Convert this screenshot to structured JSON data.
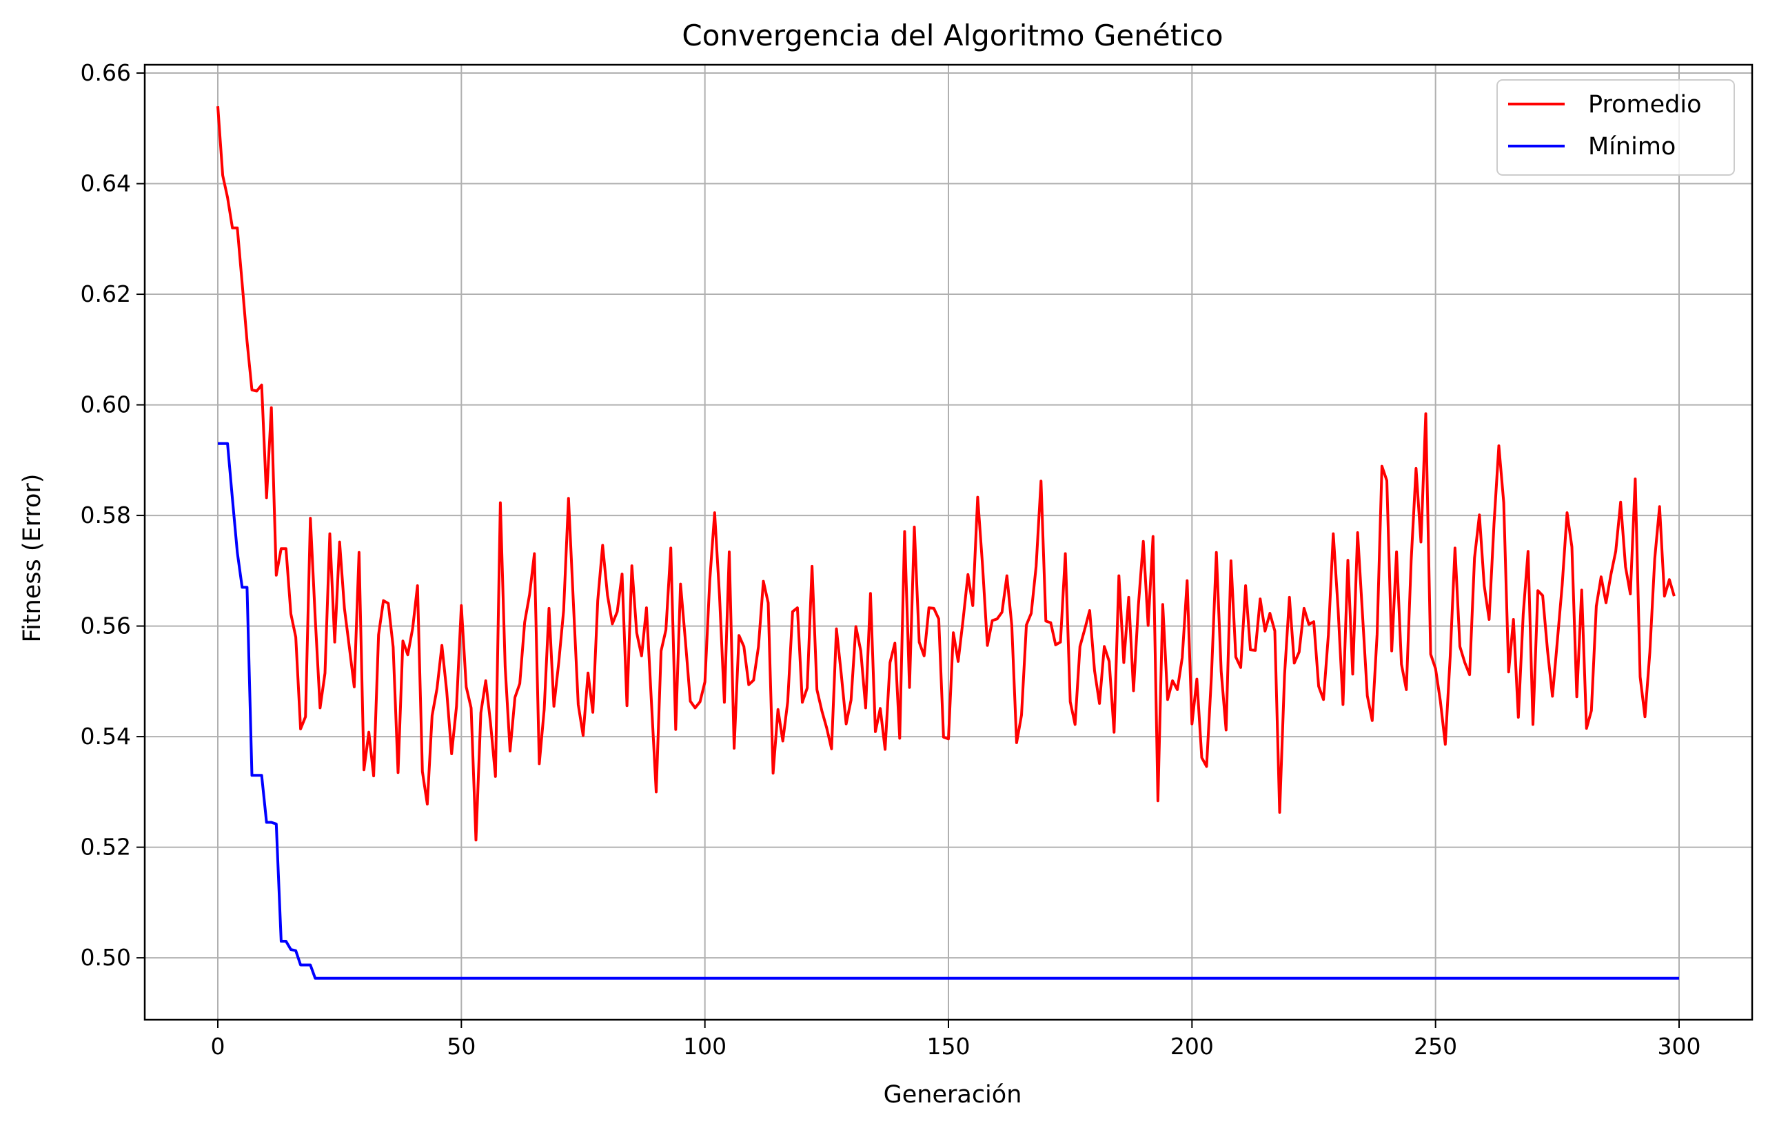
{
  "chart_data": {
    "type": "line",
    "title": "Convergencia del Algoritmo Genético",
    "xlabel": "Generación",
    "ylabel": "Fitness (Error)",
    "xlim": [
      -15,
      315
    ],
    "ylim": [
      0.4888,
      0.6615
    ],
    "xticks": [
      0,
      50,
      100,
      150,
      200,
      250,
      300
    ],
    "yticks": [
      0.5,
      0.52,
      0.54,
      0.56,
      0.58,
      0.6,
      0.62,
      0.64,
      0.66
    ],
    "grid": true,
    "legend_position": "top-right",
    "series": [
      {
        "name": "Promedio",
        "color": "#ff0000",
        "x": [
          0,
          1,
          2,
          3,
          4,
          5,
          6,
          7,
          8,
          9,
          10,
          11,
          12,
          13,
          14,
          15,
          16,
          17,
          18,
          19,
          20,
          21,
          22,
          23,
          24,
          25,
          26,
          27,
          28,
          29,
          30,
          31,
          32,
          33,
          34,
          35,
          36,
          37,
          38,
          39,
          40,
          41,
          42,
          43,
          44,
          45,
          46,
          47,
          48,
          49,
          50,
          51,
          52,
          53,
          54,
          55,
          56,
          57,
          58,
          59,
          60,
          61,
          62,
          63,
          64,
          65,
          66,
          67,
          68,
          69,
          70,
          71,
          72,
          73,
          74,
          75,
          76,
          77,
          78,
          79,
          80,
          81,
          82,
          83,
          84,
          85,
          86,
          87,
          88,
          89,
          90,
          91,
          92,
          93,
          94,
          95,
          96,
          97,
          98,
          99,
          100,
          101,
          102,
          103,
          104,
          105,
          106,
          107,
          108,
          109,
          110,
          111,
          112,
          113,
          114,
          115,
          116,
          117,
          118,
          119,
          120,
          121,
          122,
          123,
          124,
          125,
          126,
          127,
          128,
          129,
          130,
          131,
          132,
          133,
          134,
          135,
          136,
          137,
          138,
          139,
          140,
          141,
          142,
          143,
          144,
          145,
          146,
          147,
          148,
          149,
          150,
          151,
          152,
          153,
          154,
          155,
          156,
          157,
          158,
          159,
          160,
          161,
          162,
          163,
          164,
          165,
          166,
          167,
          168,
          169,
          170,
          171,
          172,
          173,
          174,
          175,
          176,
          177,
          178,
          179,
          180,
          181,
          182,
          183,
          184,
          185,
          186,
          187,
          188,
          189,
          190,
          191,
          192,
          193,
          194,
          195,
          196,
          197,
          198,
          199,
          200,
          201,
          202,
          203,
          204,
          205,
          206,
          207,
          208,
          209,
          210,
          211,
          212,
          213,
          214,
          215,
          216,
          217,
          218,
          219,
          220,
          221,
          222,
          223,
          224,
          225,
          226,
          227,
          228,
          229,
          230,
          231,
          232,
          233,
          234,
          235,
          236,
          237,
          238,
          239,
          240,
          241,
          242,
          243,
          244,
          245,
          246,
          247,
          248,
          249,
          250,
          251,
          252,
          253,
          254,
          255,
          256,
          257,
          258,
          259,
          260,
          261,
          262,
          263,
          264,
          265,
          266,
          267,
          268,
          269,
          270,
          271,
          272,
          273,
          274,
          275,
          276,
          277,
          278,
          279,
          280,
          281,
          282,
          283,
          284,
          285,
          286,
          287,
          288,
          289,
          290,
          291,
          292,
          293,
          294,
          295,
          296,
          297,
          298,
          299
        ],
        "y": [
          0.654,
          0.6415,
          0.6375,
          0.632,
          0.632,
          0.622,
          0.6115,
          0.6027,
          0.6025,
          0.6036,
          0.5832,
          0.5995,
          0.5692,
          0.574,
          0.574,
          0.5622,
          0.558,
          0.5414,
          0.5436,
          0.5795,
          0.5615,
          0.5452,
          0.5515,
          0.5767,
          0.5571,
          0.5752,
          0.5632,
          0.5562,
          0.549,
          0.5733,
          0.534,
          0.5408,
          0.5329,
          0.5584,
          0.5646,
          0.5641,
          0.5562,
          0.5335,
          0.5573,
          0.5548,
          0.5596,
          0.5673,
          0.5337,
          0.5278,
          0.5438,
          0.5487,
          0.5565,
          0.5482,
          0.5369,
          0.5455,
          0.5637,
          0.549,
          0.5452,
          0.5213,
          0.5443,
          0.5501,
          0.5424,
          0.5328,
          0.5823,
          0.5526,
          0.5374,
          0.5471,
          0.5496,
          0.5607,
          0.5657,
          0.5731,
          0.5351,
          0.5449,
          0.5632,
          0.5455,
          0.5535,
          0.5628,
          0.5831,
          0.5641,
          0.5458,
          0.5402,
          0.5515,
          0.5444,
          0.5646,
          0.5746,
          0.5656,
          0.5604,
          0.5626,
          0.5694,
          0.5456,
          0.5709,
          0.5588,
          0.5546,
          0.5633,
          0.5467,
          0.53,
          0.5555,
          0.5593,
          0.5741,
          0.5413,
          0.5676,
          0.5573,
          0.5464,
          0.5452,
          0.5463,
          0.5499,
          0.5682,
          0.5805,
          0.5654,
          0.5462,
          0.5734,
          0.5379,
          0.5583,
          0.5563,
          0.5494,
          0.5502,
          0.5563,
          0.5681,
          0.5642,
          0.5334,
          0.5449,
          0.5392,
          0.5463,
          0.5626,
          0.5633,
          0.5462,
          0.5488,
          0.5708,
          0.5485,
          0.5447,
          0.5416,
          0.5378,
          0.5595,
          0.5513,
          0.5423,
          0.5466,
          0.5599,
          0.5555,
          0.5452,
          0.5659,
          0.5409,
          0.5451,
          0.5377,
          0.5534,
          0.5569,
          0.5397,
          0.5771,
          0.5489,
          0.5779,
          0.5571,
          0.5546,
          0.5633,
          0.5632,
          0.5613,
          0.5399,
          0.5396,
          0.5588,
          0.5536,
          0.5611,
          0.5693,
          0.5637,
          0.5833,
          0.5709,
          0.5565,
          0.561,
          0.5613,
          0.5625,
          0.5691,
          0.5601,
          0.5389,
          0.5439,
          0.5602,
          0.5623,
          0.5708,
          0.5862,
          0.5609,
          0.5606,
          0.5566,
          0.5571,
          0.5731,
          0.5463,
          0.5422,
          0.5563,
          0.5595,
          0.5628,
          0.5519,
          0.546,
          0.5563,
          0.5536,
          0.5408,
          0.5691,
          0.5534,
          0.5652,
          0.5483,
          0.5638,
          0.5753,
          0.5601,
          0.5762,
          0.5284,
          0.5639,
          0.5467,
          0.5501,
          0.5485,
          0.5543,
          0.5682,
          0.5423,
          0.5504,
          0.5362,
          0.5346,
          0.5511,
          0.5733,
          0.5518,
          0.5412,
          0.5718,
          0.5544,
          0.5525,
          0.5673,
          0.5557,
          0.5556,
          0.5649,
          0.5591,
          0.5623,
          0.5591,
          0.5263,
          0.5511,
          0.5652,
          0.5533,
          0.5553,
          0.5632,
          0.5603,
          0.5608,
          0.5491,
          0.5467,
          0.5584,
          0.5767,
          0.5631,
          0.5458,
          0.5719,
          0.5513,
          0.5769,
          0.5621,
          0.5474,
          0.5429,
          0.5585,
          0.5889,
          0.5863,
          0.5555,
          0.5734,
          0.5531,
          0.5485,
          0.5718,
          0.5885,
          0.5752,
          0.5984,
          0.5549,
          0.5523,
          0.5464,
          0.5386,
          0.5544,
          0.5741,
          0.5563,
          0.5534,
          0.5512,
          0.5723,
          0.5801,
          0.5673,
          0.5612,
          0.5785,
          0.5926,
          0.5823,
          0.5517,
          0.5612,
          0.5435,
          0.5622,
          0.5735,
          0.5422,
          0.5664,
          0.5655,
          0.5555,
          0.5473,
          0.5572,
          0.5674,
          0.5805,
          0.5743,
          0.5472,
          0.5665,
          0.5415,
          0.5447,
          0.5636,
          0.5689,
          0.5642,
          0.5693,
          0.5735,
          0.5824,
          0.5707,
          0.5658,
          0.5866,
          0.5508,
          0.5436,
          0.5553,
          0.5722,
          0.5816,
          0.5654,
          0.5684,
          0.5654
        ]
      },
      {
        "name": "Mínimo",
        "color": "#0000ff",
        "x": [
          0,
          1,
          2,
          3,
          4,
          5,
          6,
          7,
          8,
          9,
          10,
          11,
          12,
          13,
          14,
          15,
          16,
          17,
          18,
          19,
          20,
          300
        ],
        "y": [
          0.593,
          0.593,
          0.593,
          0.583,
          0.5733,
          0.567,
          0.567,
          0.533,
          0.533,
          0.533,
          0.5245,
          0.5245,
          0.5242,
          0.503,
          0.503,
          0.5015,
          0.5013,
          0.4987,
          0.4987,
          0.4987,
          0.4963,
          0.4963
        ],
        "drawstyle": "line"
      }
    ]
  }
}
